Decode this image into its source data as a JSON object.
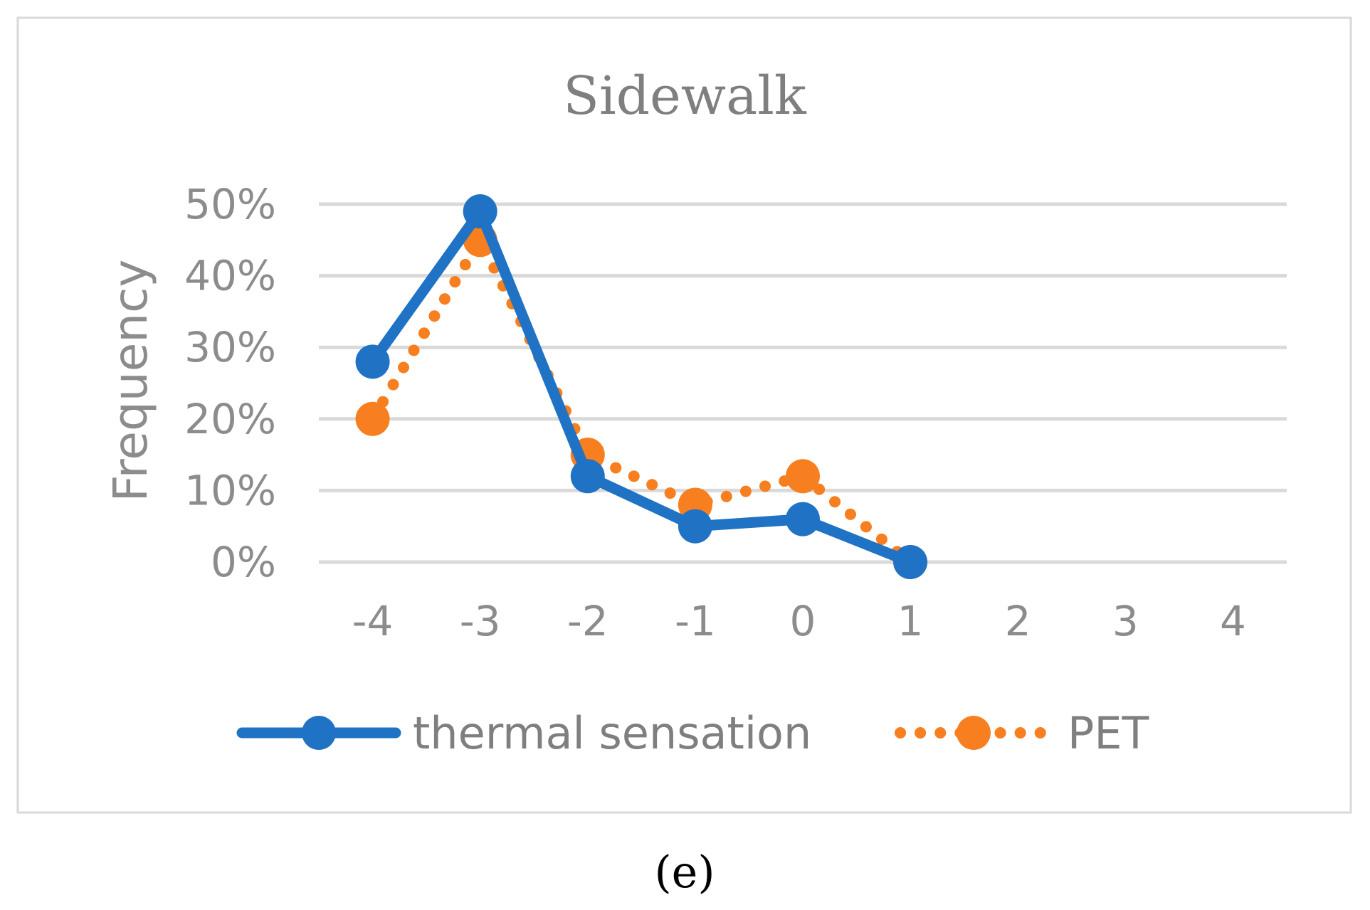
{
  "chart_data": {
    "type": "line",
    "title": "Sidewalk",
    "xlabel": "",
    "ylabel": "Frequency",
    "x": [
      -4,
      -3,
      -2,
      -1,
      0,
      1,
      2,
      3,
      4
    ],
    "x_tick_labels": [
      "-4",
      "-3",
      "-2",
      "-1",
      "0",
      "1",
      "2",
      "3",
      "4"
    ],
    "y_tick_labels": [
      "0%",
      "10%",
      "20%",
      "30%",
      "40%",
      "50%"
    ],
    "y_ticks": [
      0,
      10,
      20,
      30,
      40,
      50
    ],
    "ylim": [
      0,
      50
    ],
    "grid": true,
    "legend_position": "bottom",
    "series": [
      {
        "name": "thermal sensation",
        "x": [
          -4,
          -3,
          -2,
          -1,
          0,
          1
        ],
        "values": [
          28,
          49,
          12,
          5,
          6,
          0
        ],
        "color": "#1f72c4",
        "style": "solid"
      },
      {
        "name": "PET",
        "x": [
          -4,
          -3,
          -2,
          -1,
          0,
          1
        ],
        "values": [
          20,
          45,
          15,
          8,
          12,
          0
        ],
        "color": "#f77f1f",
        "style": "dotted"
      }
    ],
    "panel_label": "(e)"
  }
}
